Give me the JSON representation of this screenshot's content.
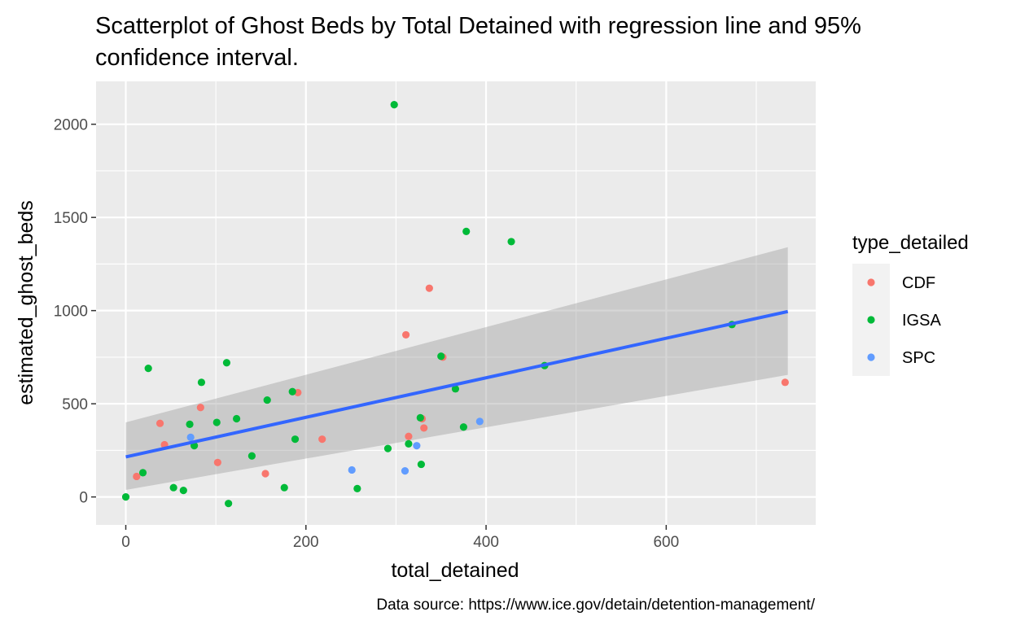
{
  "chart_data": {
    "type": "scatter",
    "title_lines": [
      "Scatterplot of Ghost Beds by Total Detained with regression line and 95%",
      "confidence interval."
    ],
    "xlabel": "total_detained",
    "ylabel": "estimated_ghost_beds",
    "caption": "Data source: https://www.ice.gov/detain/detention-management/",
    "xlim": [
      -33,
      766
    ],
    "ylim": [
      -150,
      2230
    ],
    "x_ticks": [
      0,
      200,
      400,
      600
    ],
    "x_tick_labels": [
      "0",
      "200",
      "400",
      "600"
    ],
    "y_ticks": [
      0,
      500,
      1000,
      1500,
      2000
    ],
    "y_tick_labels": [
      "0",
      "500",
      "1000",
      "1500",
      "2000"
    ],
    "grid": true,
    "legend": {
      "title": "type_detailed",
      "position": "right",
      "entries": [
        "CDF",
        "IGSA",
        "SPC"
      ]
    },
    "colors": {
      "CDF": "#F8766D",
      "IGSA": "#00BA38",
      "SPC": "#619CFF",
      "regression_line": "#3366FF",
      "confidence_band": "#999999",
      "panel_background": "#EBEBEB",
      "grid": "#FFFFFF"
    },
    "regression": {
      "x": [
        0,
        735
      ],
      "y": [
        215,
        995
      ],
      "ci_lower": [
        38,
        655
      ],
      "ci_upper": [
        400,
        1340
      ]
    },
    "series": [
      {
        "name": "CDF",
        "points": [
          [
            12,
            110
          ],
          [
            38,
            395
          ],
          [
            43,
            280
          ],
          [
            83,
            480
          ],
          [
            102,
            185
          ],
          [
            155,
            125
          ],
          [
            191,
            560
          ],
          [
            218,
            310
          ],
          [
            311,
            870
          ],
          [
            314,
            325
          ],
          [
            329,
            420
          ],
          [
            331,
            370
          ],
          [
            337,
            1120
          ],
          [
            352,
            750
          ],
          [
            732,
            615
          ]
        ]
      },
      {
        "name": "IGSA",
        "points": [
          [
            0,
            0
          ],
          [
            19,
            130
          ],
          [
            25,
            690
          ],
          [
            53,
            50
          ],
          [
            64,
            35
          ],
          [
            71,
            390
          ],
          [
            76,
            275
          ],
          [
            84,
            615
          ],
          [
            101,
            400
          ],
          [
            112,
            720
          ],
          [
            114,
            -35
          ],
          [
            123,
            420
          ],
          [
            140,
            220
          ],
          [
            157,
            520
          ],
          [
            176,
            50
          ],
          [
            185,
            565
          ],
          [
            188,
            310
          ],
          [
            257,
            45
          ],
          [
            291,
            260
          ],
          [
            298,
            2105
          ],
          [
            314,
            285
          ],
          [
            327,
            425
          ],
          [
            328,
            175
          ],
          [
            350,
            755
          ],
          [
            366,
            580
          ],
          [
            375,
            375
          ],
          [
            378,
            1425
          ],
          [
            428,
            1370
          ],
          [
            465,
            705
          ],
          [
            673,
            925
          ]
        ]
      },
      {
        "name": "SPC",
        "points": [
          [
            72,
            320
          ],
          [
            251,
            145
          ],
          [
            310,
            140
          ],
          [
            323,
            275
          ],
          [
            393,
            405
          ]
        ]
      }
    ]
  }
}
